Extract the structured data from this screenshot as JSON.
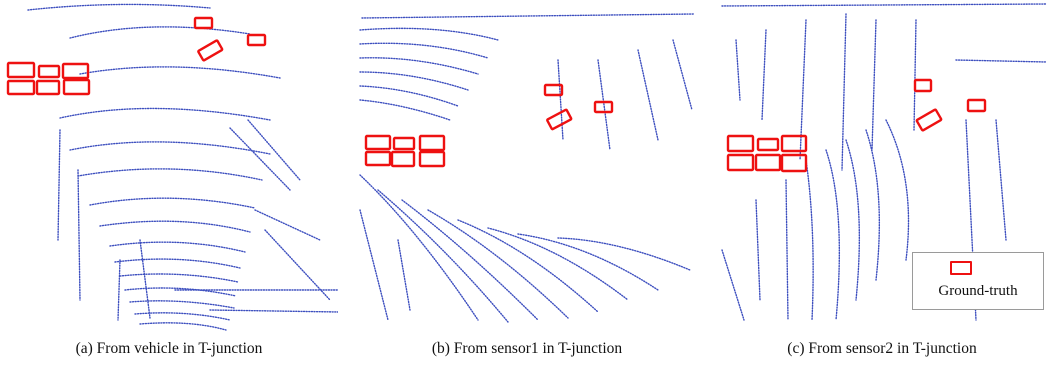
{
  "figure": {
    "panels": [
      {
        "id": "a",
        "caption": "(a) From vehicle in T-junction"
      },
      {
        "id": "b",
        "caption": "(b) From sensor1 in T-junction"
      },
      {
        "id": "c",
        "caption": "(c) From sensor2 in T-junction"
      }
    ],
    "legend": {
      "label": "Ground-truth"
    },
    "colors": {
      "points": "#3d4fbf",
      "boxes": "#ee1111"
    }
  }
}
